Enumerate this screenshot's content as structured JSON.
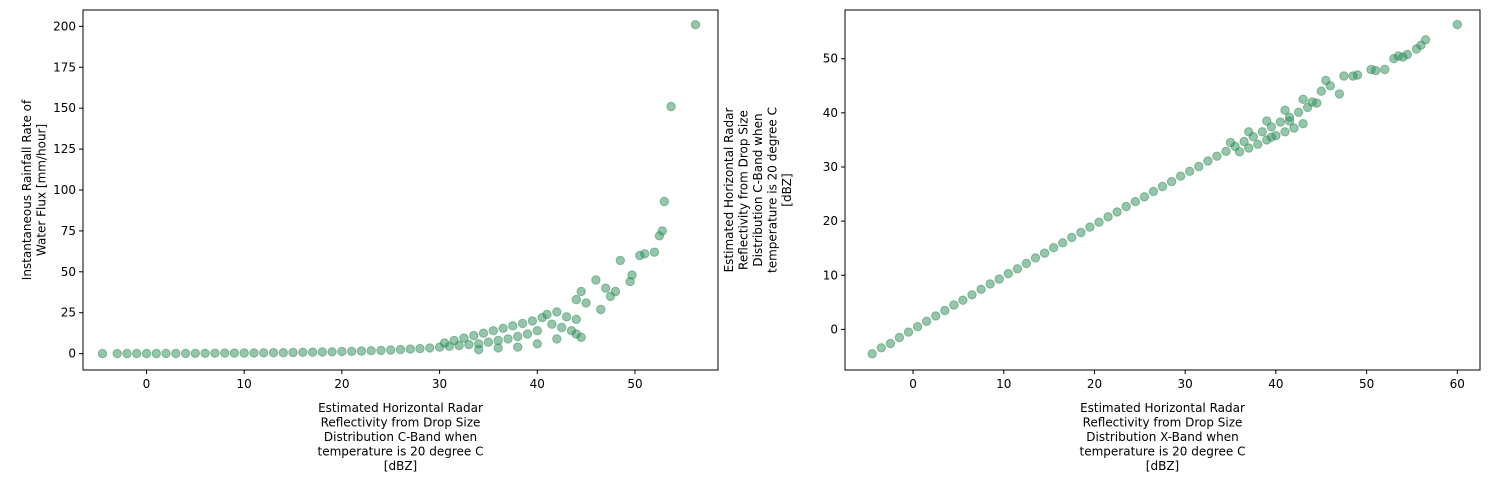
{
  "chart_data": [
    {
      "type": "scatter",
      "marker_color": "#2e8b57",
      "marker_alpha": 0.5,
      "xlim": [
        -6.5,
        58.5
      ],
      "ylim": [
        -10,
        210
      ],
      "xticks": [
        0,
        10,
        20,
        30,
        40,
        50
      ],
      "yticks": [
        0,
        25,
        50,
        75,
        100,
        125,
        150,
        175,
        200
      ],
      "xlabel": [
        "Estimated Horizontal Radar",
        "Reflectivity from Drop Size",
        "Distribution C-Band when",
        "temperature is 20 degree C",
        "[dBZ]"
      ],
      "ylabel": [
        "Instantaneous Rainfall Rate of",
        "Water Flux [mm/hour]"
      ],
      "points": [
        [
          -4.5,
          0.03
        ],
        [
          -3,
          0.05
        ],
        [
          -2,
          0.06
        ],
        [
          -1,
          0.07
        ],
        [
          0,
          0.08
        ],
        [
          1,
          0.1
        ],
        [
          2,
          0.12
        ],
        [
          3,
          0.14
        ],
        [
          4,
          0.16
        ],
        [
          5,
          0.2
        ],
        [
          6,
          0.22
        ],
        [
          7,
          0.26
        ],
        [
          8,
          0.3
        ],
        [
          9,
          0.34
        ],
        [
          10,
          0.4
        ],
        [
          11,
          0.45
        ],
        [
          12,
          0.5
        ],
        [
          13,
          0.55
        ],
        [
          14,
          0.6
        ],
        [
          15,
          0.7
        ],
        [
          16,
          0.8
        ],
        [
          17,
          0.9
        ],
        [
          18,
          1.0
        ],
        [
          19,
          1.1
        ],
        [
          20,
          1.3
        ],
        [
          21,
          1.4
        ],
        [
          22,
          1.6
        ],
        [
          23,
          1.8
        ],
        [
          24,
          2.0
        ],
        [
          25,
          2.2
        ],
        [
          26,
          2.5
        ],
        [
          27,
          2.8
        ],
        [
          28,
          3.1
        ],
        [
          29,
          3.5
        ],
        [
          30,
          4.0
        ],
        [
          31,
          4.5
        ],
        [
          32,
          5.0
        ],
        [
          33,
          5.5
        ],
        [
          34,
          6.0
        ],
        [
          35,
          7.0
        ],
        [
          36,
          8.0
        ],
        [
          37,
          9.0
        ],
        [
          38,
          10.5
        ],
        [
          39,
          12.0
        ],
        [
          40,
          14.0
        ],
        [
          30.5,
          6.5
        ],
        [
          31.5,
          8.0
        ],
        [
          32.5,
          9.5
        ],
        [
          33.5,
          11.0
        ],
        [
          34.5,
          12.5
        ],
        [
          35.5,
          14.0
        ],
        [
          36.5,
          15.5
        ],
        [
          37.5,
          17.0
        ],
        [
          38.5,
          18.5
        ],
        [
          39.5,
          20.0
        ],
        [
          40.5,
          22.0
        ],
        [
          41,
          24.0
        ],
        [
          42,
          25.5
        ],
        [
          43,
          22.5
        ],
        [
          44,
          21.0
        ],
        [
          41.5,
          18.0
        ],
        [
          42.5,
          16.0
        ],
        [
          43.5,
          14.0
        ],
        [
          44.5,
          10.0
        ],
        [
          34,
          2.5
        ],
        [
          36,
          3.5
        ],
        [
          38,
          4.0
        ],
        [
          40,
          6.0
        ],
        [
          42,
          9.0
        ],
        [
          44,
          12.0
        ],
        [
          44,
          33.0
        ],
        [
          45,
          31.0
        ],
        [
          44.5,
          38.0
        ],
        [
          46,
          45.0
        ],
        [
          46.5,
          27.0
        ],
        [
          47,
          40.0
        ],
        [
          47.5,
          35.0
        ],
        [
          48,
          38.0
        ],
        [
          48.5,
          57.0
        ],
        [
          49.5,
          44.0
        ],
        [
          49.7,
          48.0
        ],
        [
          50.5,
          60.0
        ],
        [
          51,
          61.0
        ],
        [
          52,
          62.0
        ],
        [
          52.5,
          72.0
        ],
        [
          52.8,
          75.0
        ],
        [
          53,
          93.0
        ],
        [
          53.7,
          151.0
        ],
        [
          56.2,
          201.0
        ]
      ]
    },
    {
      "type": "scatter",
      "marker_color": "#2e8b57",
      "marker_alpha": 0.5,
      "xlim": [
        -7.5,
        62.5
      ],
      "ylim": [
        -7.5,
        59
      ],
      "xticks": [
        0,
        10,
        20,
        30,
        40,
        50,
        60
      ],
      "yticks": [
        0,
        10,
        20,
        30,
        40,
        50
      ],
      "xlabel": [
        "Estimated Horizontal Radar",
        "Reflectivity from Drop Size",
        "Distribution X-Band when",
        "temperature is 20 degree C",
        "[dBZ]"
      ],
      "ylabel": [
        "Estimated Horizontal Radar",
        "Reflectivity from Drop Size",
        "Distribution C-Band when",
        "temperature is 20 degree C",
        "[dBZ]"
      ],
      "points": [
        [
          -4.5,
          -4.5
        ],
        [
          -3.5,
          -3.4
        ],
        [
          -2.5,
          -2.6
        ],
        [
          -1.5,
          -1.5
        ],
        [
          -0.5,
          -0.5
        ],
        [
          0.5,
          0.5
        ],
        [
          1.5,
          1.5
        ],
        [
          2.5,
          2.5
        ],
        [
          3.5,
          3.5
        ],
        [
          4.5,
          4.5
        ],
        [
          5.5,
          5.4
        ],
        [
          6.5,
          6.4
        ],
        [
          7.5,
          7.4
        ],
        [
          8.5,
          8.4
        ],
        [
          9.5,
          9.3
        ],
        [
          10.5,
          10.3
        ],
        [
          11.5,
          11.2
        ],
        [
          12.5,
          12.2
        ],
        [
          13.5,
          13.2
        ],
        [
          14.5,
          14.1
        ],
        [
          15.5,
          15.1
        ],
        [
          16.5,
          16.0
        ],
        [
          17.5,
          17.0
        ],
        [
          18.5,
          17.9
        ],
        [
          19.5,
          18.9
        ],
        [
          20.5,
          19.8
        ],
        [
          21.5,
          20.8
        ],
        [
          22.5,
          21.7
        ],
        [
          23.5,
          22.7
        ],
        [
          24.5,
          23.6
        ],
        [
          25.5,
          24.5
        ],
        [
          26.5,
          25.5
        ],
        [
          27.5,
          26.4
        ],
        [
          28.5,
          27.3
        ],
        [
          29.5,
          28.3
        ],
        [
          30.5,
          29.2
        ],
        [
          31.5,
          30.1
        ],
        [
          32.5,
          31.1
        ],
        [
          33.5,
          32.0
        ],
        [
          34.5,
          32.9
        ],
        [
          35.5,
          33.8
        ],
        [
          36.5,
          34.7
        ],
        [
          37.5,
          35.6
        ],
        [
          38.5,
          36.5
        ],
        [
          39.5,
          37.4
        ],
        [
          40.5,
          38.3
        ],
        [
          41.5,
          39.2
        ],
        [
          42.5,
          40.1
        ],
        [
          43.5,
          41.0
        ],
        [
          44.5,
          41.8
        ],
        [
          36,
          32.8
        ],
        [
          37,
          33.5
        ],
        [
          38,
          34.2
        ],
        [
          39,
          35.0
        ],
        [
          40,
          35.8
        ],
        [
          41,
          36.5
        ],
        [
          42,
          37.2
        ],
        [
          43,
          38.0
        ],
        [
          39.5,
          35.5
        ],
        [
          41.5,
          38.5
        ],
        [
          35,
          34.5
        ],
        [
          37,
          36.5
        ],
        [
          39,
          38.5
        ],
        [
          41,
          40.5
        ],
        [
          43,
          42.5
        ],
        [
          45,
          44.0
        ],
        [
          44,
          42.0
        ],
        [
          46,
          45.0
        ],
        [
          45.5,
          46.0
        ],
        [
          47,
          43.5
        ],
        [
          47.5,
          46.8
        ],
        [
          48.5,
          46.8
        ],
        [
          49,
          47.0
        ],
        [
          50.5,
          48.0
        ],
        [
          51,
          47.8
        ],
        [
          52,
          48.0
        ],
        [
          53,
          50.0
        ],
        [
          53.5,
          50.5
        ],
        [
          54,
          50.3
        ],
        [
          54.5,
          50.8
        ],
        [
          55.5,
          51.8
        ],
        [
          56,
          52.5
        ],
        [
          56.5,
          53.5
        ],
        [
          60,
          56.3
        ]
      ]
    }
  ]
}
